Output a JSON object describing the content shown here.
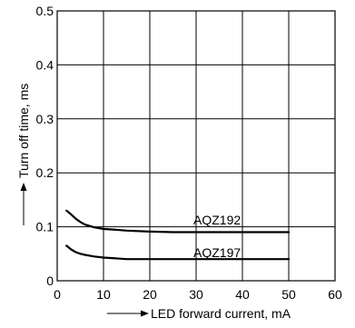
{
  "chart_data": {
    "type": "line",
    "xlabel": "LED forward current, mA",
    "ylabel": "Turn off time, ms",
    "xlim": [
      0,
      60
    ],
    "ylim": [
      0,
      0.5
    ],
    "x_ticks": [
      "0",
      "10",
      "20",
      "30",
      "40",
      "50",
      "60"
    ],
    "y_ticks": [
      "0",
      "0.1",
      "0.2",
      "0.3",
      "0.4",
      "0.5"
    ],
    "grid": true,
    "series": [
      {
        "name": "AQZ192",
        "x": [
          2,
          3,
          4,
          5,
          6,
          8,
          10,
          12,
          15,
          20,
          25,
          30,
          35,
          40,
          45,
          50
        ],
        "y": [
          0.13,
          0.123,
          0.115,
          0.109,
          0.104,
          0.099,
          0.096,
          0.095,
          0.093,
          0.091,
          0.09,
          0.09,
          0.09,
          0.09,
          0.09,
          0.09
        ]
      },
      {
        "name": "AQZ197",
        "x": [
          2,
          3,
          4,
          5,
          6,
          8,
          10,
          12,
          15,
          20,
          25,
          30,
          35,
          40,
          45,
          50
        ],
        "y": [
          0.065,
          0.058,
          0.053,
          0.05,
          0.048,
          0.045,
          0.043,
          0.042,
          0.04,
          0.04,
          0.04,
          0.04,
          0.04,
          0.04,
          0.04,
          0.04
        ]
      }
    ],
    "annotations": [
      "AQZ192",
      "AQZ197"
    ]
  }
}
